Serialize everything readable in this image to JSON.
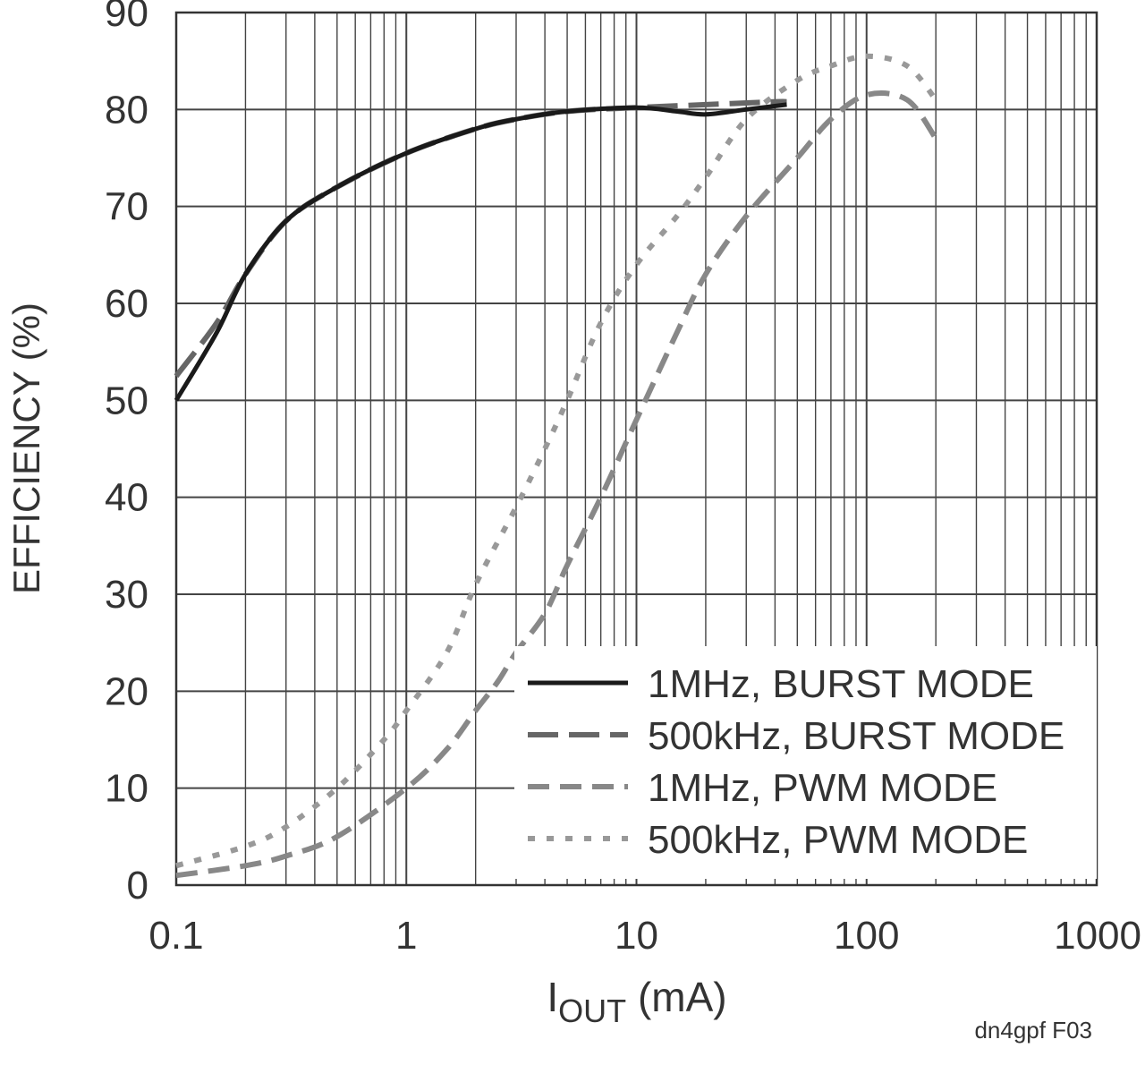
{
  "chart_data": {
    "type": "line",
    "ylabel": "EFFICIENCY (%)",
    "xlabel": {
      "main": "I",
      "sub": "OUT",
      "rest": " (mA)"
    },
    "note": "dn4gpf F03",
    "x_scale": "log",
    "xlim": [
      0.1,
      1000
    ],
    "ylim": [
      0,
      90
    ],
    "x_ticks": [
      0.1,
      1,
      10,
      100,
      1000
    ],
    "x_tick_labels": [
      "0.1",
      "1",
      "10",
      "100",
      "1000"
    ],
    "y_ticks": [
      0,
      10,
      20,
      30,
      40,
      50,
      60,
      70,
      80,
      90
    ],
    "y_tick_labels": [
      "0",
      "10",
      "20",
      "30",
      "40",
      "50",
      "60",
      "70",
      "80",
      "90"
    ],
    "grid": true,
    "legend_position": "bottom-right",
    "series": [
      {
        "name": "1MHz, BURST MODE",
        "color": "#1a1a1a",
        "style": "solid",
        "points": [
          [
            0.1,
            50
          ],
          [
            0.15,
            57
          ],
          [
            0.2,
            63
          ],
          [
            0.3,
            68.5
          ],
          [
            0.5,
            72
          ],
          [
            1,
            75.5
          ],
          [
            2,
            78
          ],
          [
            3,
            79
          ],
          [
            5,
            79.8
          ],
          [
            10,
            80.2
          ],
          [
            15,
            79.8
          ],
          [
            20,
            79.5
          ],
          [
            30,
            80
          ],
          [
            45,
            80.5
          ]
        ]
      },
      {
        "name": "500kHz, BURST MODE",
        "color": "#666666",
        "style": "longdash",
        "points": [
          [
            0.1,
            52.5
          ],
          [
            0.15,
            58
          ],
          [
            0.2,
            63
          ],
          [
            0.3,
            68.5
          ],
          [
            0.5,
            72
          ],
          [
            1,
            75.5
          ],
          [
            2,
            78
          ],
          [
            3,
            79
          ],
          [
            5,
            79.8
          ],
          [
            10,
            80.2
          ],
          [
            20,
            80.5
          ],
          [
            40,
            80.8
          ],
          [
            45,
            80.8
          ]
        ]
      },
      {
        "name": "1MHz, PWM MODE",
        "color": "#888888",
        "style": "dash",
        "points": [
          [
            0.1,
            1
          ],
          [
            0.2,
            2
          ],
          [
            0.3,
            3
          ],
          [
            0.5,
            5
          ],
          [
            1,
            10
          ],
          [
            1.5,
            14
          ],
          [
            2,
            18
          ],
          [
            2.5,
            21
          ],
          [
            3,
            24
          ],
          [
            4,
            28
          ],
          [
            5,
            33
          ],
          [
            7,
            40
          ],
          [
            10,
            48
          ],
          [
            15,
            57
          ],
          [
            20,
            63
          ],
          [
            30,
            69
          ],
          [
            50,
            75
          ],
          [
            70,
            79
          ],
          [
            100,
            81.5
          ],
          [
            150,
            81
          ],
          [
            200,
            77
          ]
        ]
      },
      {
        "name": "500kHz, PWM MODE",
        "color": "#999999",
        "style": "dot",
        "points": [
          [
            0.1,
            2
          ],
          [
            0.2,
            4
          ],
          [
            0.3,
            6
          ],
          [
            0.5,
            10
          ],
          [
            0.8,
            15
          ],
          [
            1,
            18
          ],
          [
            1.5,
            24
          ],
          [
            2,
            31
          ],
          [
            3,
            39
          ],
          [
            4,
            45
          ],
          [
            5,
            50
          ],
          [
            7,
            58
          ],
          [
            10,
            64
          ],
          [
            15,
            69
          ],
          [
            20,
            73
          ],
          [
            30,
            79
          ],
          [
            50,
            83
          ],
          [
            70,
            84.5
          ],
          [
            100,
            85.5
          ],
          [
            150,
            84.5
          ],
          [
            200,
            81
          ]
        ]
      }
    ]
  }
}
